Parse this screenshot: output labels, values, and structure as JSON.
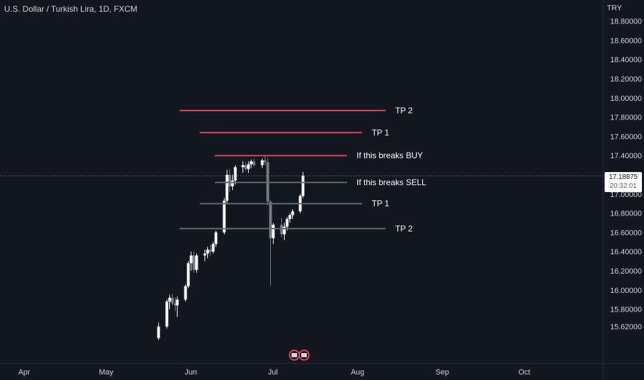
{
  "header": {
    "symbol_title": "U.S. Dollar / Turkish Lira, 1D, FXCM",
    "currency": "TRY"
  },
  "last_price": {
    "value": "17.18875",
    "countdown": "20:32:01"
  },
  "colors": {
    "background": "#131722",
    "up": "#ffffff",
    "down": "#787b86",
    "resistance": "#e0434f",
    "support": "#5a6e63",
    "text": "#d1d4dc"
  },
  "chart_data": {
    "type": "candlestick",
    "symbol": "USDTRY",
    "interval": "1D",
    "x_tick_labels": [
      "Apr",
      "May",
      "Jun",
      "Jul",
      "Aug",
      "Sep",
      "Oct"
    ],
    "y_tick_labels": [
      "18.80000",
      "18.60000",
      "18.40000",
      "18.20000",
      "18.00000",
      "17.80000",
      "17.60000",
      "17.40000",
      "17.00000",
      "16.80000",
      "16.60000",
      "16.40000",
      "16.20000",
      "16.00000",
      "15.80000",
      "15.62000"
    ],
    "ylim": [
      15.48,
      18.95
    ],
    "grid": false,
    "last_value": 17.18875,
    "candles": [
      {
        "date": "2022-05-20",
        "o": 15.5,
        "h": 15.66,
        "l": 15.48,
        "c": 15.62
      },
      {
        "date": "2022-05-23",
        "o": 15.62,
        "h": 15.9,
        "l": 15.6,
        "c": 15.88
      },
      {
        "date": "2022-05-24",
        "o": 15.88,
        "h": 15.95,
        "l": 15.8,
        "c": 15.92
      },
      {
        "date": "2022-05-25",
        "o": 15.92,
        "h": 15.96,
        "l": 15.84,
        "c": 15.86
      },
      {
        "date": "2022-05-26",
        "o": 15.86,
        "h": 15.92,
        "l": 15.78,
        "c": 15.84
      },
      {
        "date": "2022-05-27",
        "o": 15.84,
        "h": 15.93,
        "l": 15.72,
        "c": 15.9
      },
      {
        "date": "2022-05-30",
        "o": 15.9,
        "h": 16.06,
        "l": 15.88,
        "c": 16.04
      },
      {
        "date": "2022-05-31",
        "o": 16.04,
        "h": 16.3,
        "l": 16.02,
        "c": 16.28
      },
      {
        "date": "2022-06-01",
        "o": 16.28,
        "h": 16.4,
        "l": 16.2,
        "c": 16.36
      },
      {
        "date": "2022-06-02",
        "o": 16.36,
        "h": 16.4,
        "l": 16.18,
        "c": 16.21
      },
      {
        "date": "2022-06-03",
        "o": 16.21,
        "h": 16.38,
        "l": 16.18,
        "c": 16.36
      },
      {
        "date": "2022-06-06",
        "o": 16.36,
        "h": 16.42,
        "l": 16.3,
        "c": 16.38
      },
      {
        "date": "2022-06-07",
        "o": 16.38,
        "h": 16.45,
        "l": 16.33,
        "c": 16.42
      },
      {
        "date": "2022-06-08",
        "o": 16.42,
        "h": 16.47,
        "l": 16.36,
        "c": 16.4
      },
      {
        "date": "2022-06-09",
        "o": 16.4,
        "h": 16.5,
        "l": 16.38,
        "c": 16.48
      },
      {
        "date": "2022-06-10",
        "o": 16.48,
        "h": 16.62,
        "l": 16.45,
        "c": 16.6
      },
      {
        "date": "2022-06-13",
        "o": 16.6,
        "h": 16.96,
        "l": 16.58,
        "c": 16.93
      },
      {
        "date": "2022-06-14",
        "o": 16.93,
        "h": 17.25,
        "l": 16.9,
        "c": 17.2
      },
      {
        "date": "2022-06-15",
        "o": 17.2,
        "h": 17.26,
        "l": 17.02,
        "c": 17.08
      },
      {
        "date": "2022-06-16",
        "o": 17.08,
        "h": 17.2,
        "l": 17.04,
        "c": 17.14
      },
      {
        "date": "2022-06-17",
        "o": 17.14,
        "h": 17.3,
        "l": 17.1,
        "c": 17.28
      },
      {
        "date": "2022-06-20",
        "o": 17.28,
        "h": 17.34,
        "l": 17.22,
        "c": 17.3
      },
      {
        "date": "2022-06-21",
        "o": 17.3,
        "h": 17.33,
        "l": 17.24,
        "c": 17.26
      },
      {
        "date": "2022-06-22",
        "o": 17.26,
        "h": 17.34,
        "l": 17.22,
        "c": 17.31
      },
      {
        "date": "2022-06-23",
        "o": 17.31,
        "h": 17.36,
        "l": 17.27,
        "c": 17.34
      },
      {
        "date": "2022-06-24",
        "o": 17.34,
        "h": 17.37,
        "l": 17.28,
        "c": 17.3
      },
      {
        "date": "2022-06-27",
        "o": 17.3,
        "h": 17.37,
        "l": 17.27,
        "c": 17.35
      },
      {
        "date": "2022-06-28",
        "o": 17.35,
        "h": 17.39,
        "l": 17.3,
        "c": 17.33
      },
      {
        "date": "2022-06-29",
        "o": 17.33,
        "h": 17.38,
        "l": 16.88,
        "c": 16.92
      },
      {
        "date": "2022-06-30",
        "o": 16.92,
        "h": 16.94,
        "l": 16.05,
        "c": 16.54
      },
      {
        "date": "2022-07-01",
        "o": 16.54,
        "h": 16.7,
        "l": 16.48,
        "c": 16.68
      },
      {
        "date": "2022-07-04",
        "o": 16.68,
        "h": 16.75,
        "l": 16.55,
        "c": 16.58
      },
      {
        "date": "2022-07-05",
        "o": 16.58,
        "h": 16.7,
        "l": 16.52,
        "c": 16.66
      },
      {
        "date": "2022-07-06",
        "o": 16.66,
        "h": 16.76,
        "l": 16.62,
        "c": 16.74
      },
      {
        "date": "2022-07-07",
        "o": 16.74,
        "h": 16.8,
        "l": 16.7,
        "c": 16.78
      },
      {
        "date": "2022-07-08",
        "o": 16.78,
        "h": 16.84,
        "l": 16.74,
        "c": 16.82
      },
      {
        "date": "2022-07-11",
        "o": 16.82,
        "h": 17.0,
        "l": 16.8,
        "c": 16.98
      },
      {
        "date": "2022-07-12",
        "o": 16.98,
        "h": 17.23,
        "l": 16.96,
        "c": 17.19
      }
    ]
  },
  "drawings": {
    "resistance": [
      {
        "label": "TP 2",
        "price": 17.87
      },
      {
        "label": "TP 1",
        "price": 17.64
      },
      {
        "label": "If this breaks BUY",
        "price": 17.4
      }
    ],
    "support": [
      {
        "label": "If this breaks SELL",
        "price": 17.12
      },
      {
        "label": "TP 1",
        "price": 16.9
      },
      {
        "label": "TP 2",
        "price": 16.64
      }
    ]
  }
}
